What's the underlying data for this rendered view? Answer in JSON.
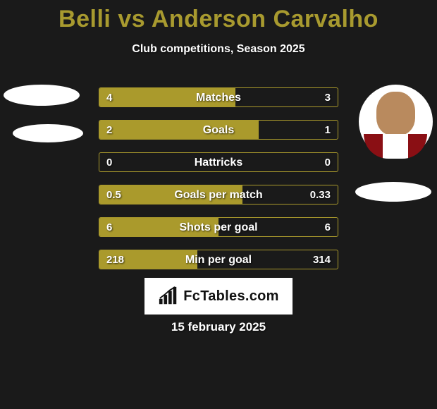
{
  "title": {
    "player1": "Belli",
    "vs": "vs",
    "player2": "Anderson Carvalho",
    "color": "#a89a2f",
    "fontsize": 34
  },
  "subtitle": "Club competitions, Season 2025",
  "background_color": "#1a1a1a",
  "bar_color": "#aa9a2c",
  "text_color": "#ffffff",
  "bars": [
    {
      "label": "Matches",
      "left_val": "4",
      "right_val": "3",
      "left_pct": 57,
      "right_pct": 0
    },
    {
      "label": "Goals",
      "left_val": "2",
      "right_val": "1",
      "left_pct": 67,
      "right_pct": 0
    },
    {
      "label": "Hattricks",
      "left_val": "0",
      "right_val": "0",
      "left_pct": 0,
      "right_pct": 0
    },
    {
      "label": "Goals per match",
      "left_val": "0.5",
      "right_val": "0.33",
      "left_pct": 60,
      "right_pct": 0
    },
    {
      "label": "Shots per goal",
      "left_val": "6",
      "right_val": "6",
      "left_pct": 50,
      "right_pct": 0
    },
    {
      "label": "Min per goal",
      "left_val": "218",
      "right_val": "314",
      "left_pct": 41,
      "right_pct": 0
    }
  ],
  "logo_text": "FcTables.com",
  "date": "15 february 2025",
  "avatars": {
    "left_bg": "#ffffff",
    "right_bg": "#ffffff"
  }
}
